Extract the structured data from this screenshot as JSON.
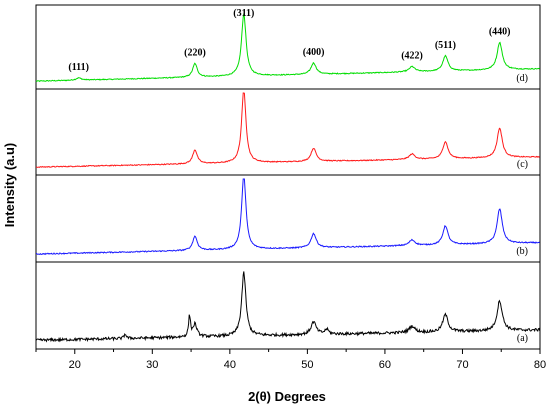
{
  "chart_data": {
    "type": "line",
    "xlabel": "2(θ) Degrees",
    "ylabel": "Intensity (a.u)",
    "xlim": [
      15,
      80
    ],
    "xticks": [
      "20",
      "30",
      "40",
      "50",
      "60",
      "70",
      "80"
    ],
    "grid": false,
    "peak_labels": [
      {
        "text": "(111)",
        "x": 20.5
      },
      {
        "text": "(220)",
        "x": 35.5
      },
      {
        "text": "(311)",
        "x": 41.8
      },
      {
        "text": "(400)",
        "x": 50.8
      },
      {
        "text": "(422)",
        "x": 63.5
      },
      {
        "text": "(511)",
        "x": 67.8
      },
      {
        "text": "(440)",
        "x": 74.8
      }
    ],
    "series": [
      {
        "panel_label": "(d)",
        "color": "#00dd00",
        "baseline": 0.05,
        "slope": 0.0025,
        "noise": 0.012,
        "peaks": [
          [
            20.5,
            0.03,
            0.4
          ],
          [
            35.5,
            0.18,
            0.35
          ],
          [
            41.8,
            0.82,
            0.35
          ],
          [
            50.8,
            0.15,
            0.4
          ],
          [
            63.5,
            0.07,
            0.45
          ],
          [
            67.8,
            0.2,
            0.4
          ],
          [
            74.8,
            0.36,
            0.4
          ]
        ]
      },
      {
        "panel_label": "(c)",
        "color": "#ff1a1a",
        "baseline": 0.05,
        "slope": 0.002,
        "noise": 0.012,
        "peaks": [
          [
            35.5,
            0.18,
            0.35
          ],
          [
            41.8,
            0.95,
            0.33
          ],
          [
            50.8,
            0.17,
            0.4
          ],
          [
            63.5,
            0.07,
            0.45
          ],
          [
            67.8,
            0.22,
            0.4
          ],
          [
            74.8,
            0.38,
            0.4
          ]
        ]
      },
      {
        "panel_label": "(b)",
        "color": "#1a1aff",
        "baseline": 0.05,
        "slope": 0.0022,
        "noise": 0.014,
        "peaks": [
          [
            35.5,
            0.18,
            0.35
          ],
          [
            41.8,
            0.95,
            0.33
          ],
          [
            50.8,
            0.18,
            0.4
          ],
          [
            63.5,
            0.07,
            0.45
          ],
          [
            67.8,
            0.24,
            0.4
          ],
          [
            74.8,
            0.44,
            0.4
          ]
        ]
      },
      {
        "panel_label": "(a)",
        "color": "#000000",
        "baseline": 0.06,
        "slope": 0.002,
        "noise": 0.035,
        "peaks": [
          [
            26.5,
            0.06,
            0.15
          ],
          [
            34.8,
            0.26,
            0.15
          ],
          [
            35.5,
            0.16,
            0.3
          ],
          [
            41.8,
            0.8,
            0.33
          ],
          [
            50.8,
            0.16,
            0.4
          ],
          [
            52.5,
            0.06,
            0.3
          ],
          [
            63.5,
            0.08,
            0.45
          ],
          [
            67.8,
            0.22,
            0.4
          ],
          [
            74.8,
            0.38,
            0.4
          ]
        ]
      }
    ]
  }
}
